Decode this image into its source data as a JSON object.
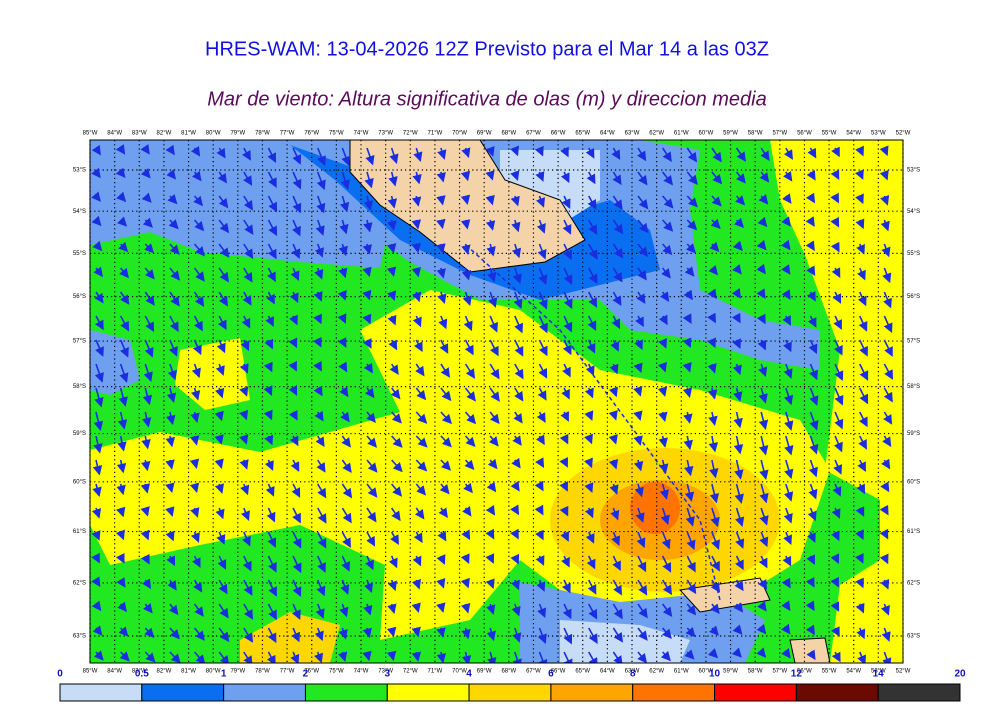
{
  "header": {
    "title": "HRES-WAM: 13-04-2026 12Z Previsto para el Mar 14 a las 03Z",
    "subtitle": "Mar de viento: Altura significativa de olas (m) y direccion media"
  },
  "map": {
    "lon_ticks": [
      {
        "value": -85,
        "label": "85°W"
      },
      {
        "value": -84,
        "label": "84°W"
      },
      {
        "value": -83,
        "label": "83°W"
      },
      {
        "value": -82,
        "label": "82°W"
      },
      {
        "value": -81,
        "label": "81°W"
      },
      {
        "value": -80,
        "label": "80°W"
      },
      {
        "value": -79,
        "label": "79°W"
      },
      {
        "value": -78,
        "label": "78°W"
      },
      {
        "value": -77,
        "label": "77°W"
      },
      {
        "value": -76,
        "label": "76°W"
      },
      {
        "value": -75,
        "label": "75°W"
      },
      {
        "value": -74,
        "label": "74°W"
      },
      {
        "value": -73,
        "label": "73°W"
      },
      {
        "value": -72,
        "label": "72°W"
      },
      {
        "value": -71,
        "label": "71°W"
      },
      {
        "value": -70,
        "label": "70°W"
      },
      {
        "value": -69,
        "label": "69°W"
      },
      {
        "value": -68,
        "label": "68°W"
      },
      {
        "value": -67,
        "label": "67°W"
      },
      {
        "value": -66,
        "label": "66°W"
      },
      {
        "value": -65,
        "label": "65°W"
      },
      {
        "value": -64,
        "label": "64°W"
      },
      {
        "value": -63,
        "label": "63°W"
      },
      {
        "value": -62,
        "label": "62°W"
      },
      {
        "value": -61,
        "label": "61°W"
      },
      {
        "value": -60,
        "label": "60°W"
      },
      {
        "value": -59,
        "label": "59°W"
      },
      {
        "value": -58,
        "label": "58°W"
      },
      {
        "value": -57,
        "label": "57°W"
      },
      {
        "value": -56,
        "label": "56°W"
      },
      {
        "value": -55,
        "label": "55°W"
      },
      {
        "value": -54,
        "label": "54°W"
      },
      {
        "value": -53,
        "label": "53°W"
      },
      {
        "value": -52,
        "label": "52°W"
      }
    ],
    "lat_ticks": [
      {
        "value": -53,
        "label": "53°S"
      },
      {
        "value": -54,
        "label": "54°S"
      },
      {
        "value": -55,
        "label": "55°S"
      },
      {
        "value": -56,
        "label": "56°S"
      },
      {
        "value": -57,
        "label": "57°S"
      },
      {
        "value": -58,
        "label": "58°S"
      },
      {
        "value": -59,
        "label": "59°S"
      },
      {
        "value": -60,
        "label": "60°S"
      },
      {
        "value": -61,
        "label": "61°S"
      },
      {
        "value": -62,
        "label": "62°S"
      },
      {
        "value": -63,
        "label": "63°S"
      }
    ]
  },
  "colorbar": {
    "ticks": [
      0,
      0.5,
      1,
      2,
      3,
      4,
      6,
      8,
      10,
      12,
      14,
      20
    ],
    "colors": [
      "#c6dcf7",
      "#0a6ef0",
      "#6fa0f0",
      "#22e822",
      "#ffff00",
      "#ffd700",
      "#ffa500",
      "#ff7400",
      "#ff0000",
      "#6b0a00",
      "#333333"
    ]
  }
}
